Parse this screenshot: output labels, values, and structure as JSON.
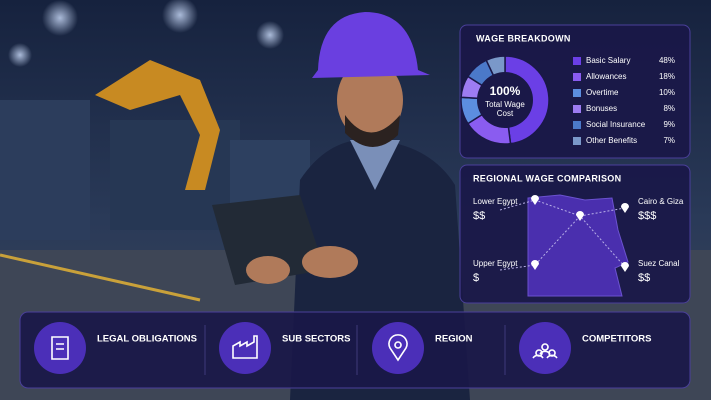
{
  "wage_breakdown": {
    "title": "WAGE BREAKDOWN",
    "center_value": "100%",
    "center_label": [
      "Total Wage",
      "Cost"
    ],
    "categories": [
      "Basic Salary",
      "Allowances",
      "Overtime",
      "Bonuses",
      "Social Insurance",
      "Other Benefits"
    ],
    "values": [
      48,
      18,
      10,
      8,
      9,
      7
    ],
    "value_labels": [
      "48%",
      "18%",
      "10%",
      "8%",
      "9%",
      "7%"
    ],
    "colors": [
      "#6b3fe6",
      "#8a5cf0",
      "#5c8ee0",
      "#9d7cf2",
      "#4b79c9",
      "#7a98c9"
    ]
  },
  "regional_comparison": {
    "title": "REGIONAL WAGE COMPARISON",
    "regions": [
      {
        "name": "Lower Egypt",
        "level": "$$"
      },
      {
        "name": "Cairo & Giza",
        "level": "$$$"
      },
      {
        "name": "Upper Egypt",
        "level": "$"
      },
      {
        "name": "Suez Canal",
        "level": "$$"
      }
    ]
  },
  "nav": {
    "items": [
      "LEGAL OBLIGATIONS",
      "SUB SECTORS",
      "REGION",
      "COMPETITORS"
    ]
  }
}
